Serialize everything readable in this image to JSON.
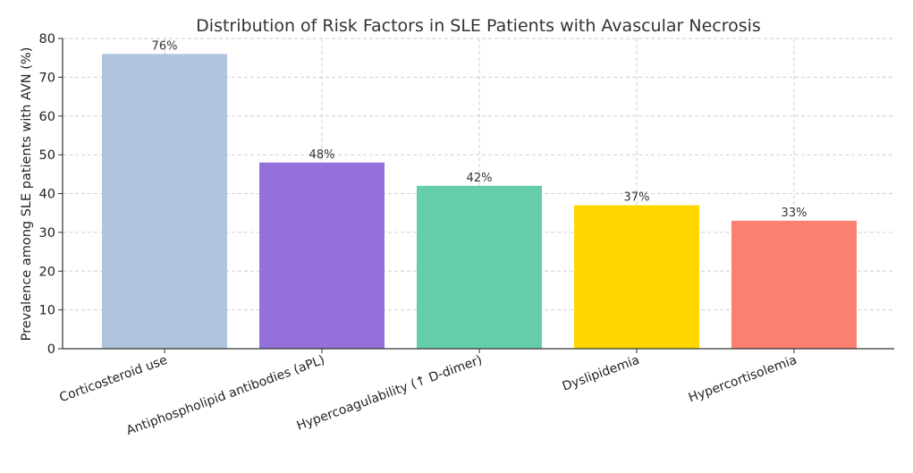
{
  "chart_data": {
    "type": "bar",
    "title": "Distribution of Risk Factors in SLE Patients with Avascular Necrosis",
    "xlabel": "",
    "ylabel": "Prevalence among SLE patients with AVN (%)",
    "ylim": [
      0,
      80
    ],
    "yticks": [
      "0",
      "10",
      "20",
      "30",
      "40",
      "50",
      "60",
      "70",
      "80"
    ],
    "grid": true,
    "categories": [
      "Corticosteroid use",
      "Antiphospholipid antibodies (aPL)",
      "Hypercoagulability (↑ D-dimer)",
      "Dyslipidemia",
      "Hypercortisolemia"
    ],
    "values": [
      76,
      48,
      42,
      37,
      33
    ],
    "data_labels": [
      "76%",
      "48%",
      "42%",
      "37%",
      "33%"
    ],
    "colors": [
      "#b0c4de",
      "#9370db",
      "#66cdaa",
      "#ffd700",
      "#fa8072"
    ]
  }
}
